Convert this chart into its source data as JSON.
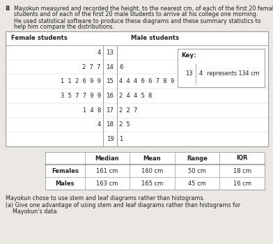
{
  "question_num": "8",
  "intro_line1": "Mayokun measured and recorded the height, to the nearest cm, of each of the first 20 female",
  "intro_line2": "students and of each of the first 20 male students to arrive at his college one morning.",
  "intro_line3": "He used statistical software to produce these diagrams and these summary statistics to",
  "intro_line4": "help him compare the distributions.",
  "female_label": "Female students",
  "male_label": "Male students",
  "stem_rows": [
    {
      "stem": "13",
      "female_leaves": "4",
      "male_leaves": ""
    },
    {
      "stem": "14",
      "female_leaves": "2  7  7",
      "male_leaves": "6"
    },
    {
      "stem": "15",
      "female_leaves": "1  1  2  6  9  9",
      "male_leaves": "4  4  4  6  6  7  8  9"
    },
    {
      "stem": "16",
      "female_leaves": "3  5  7  7  9  9",
      "male_leaves": "2  4  4  5  8"
    },
    {
      "stem": "17",
      "female_leaves": "1  4  8",
      "male_leaves": "2  2  7"
    },
    {
      "stem": "18",
      "female_leaves": "4",
      "male_leaves": "2  5"
    },
    {
      "stem": "19",
      "female_leaves": "",
      "male_leaves": "1"
    }
  ],
  "key_stem": "13",
  "key_leaf": "4",
  "key_label": "represents 134 cm",
  "stats_headers": [
    "",
    "Median",
    "Mean",
    "Range",
    "IQR"
  ],
  "stats_rows": [
    [
      "Females",
      "161 cm",
      "160 cm",
      "50 cm",
      "18 cm"
    ],
    [
      "Males",
      "163 cm",
      "165 cm",
      "45 cm",
      "16 cm"
    ]
  ],
  "footer1": "Mayokun chose to use stem and leaf diagrams rather than histograms.",
  "footer2": "(a) Give one advantage of using stem and leaf diagrams rather than histograms for",
  "footer3": "    Mayokun’s data.",
  "bg_color": "#ebe8e3",
  "box_bg": "#f5f3ef",
  "white": "#ffffff",
  "line_color": "#999999",
  "dark_line": "#555555",
  "text_color": "#222222"
}
